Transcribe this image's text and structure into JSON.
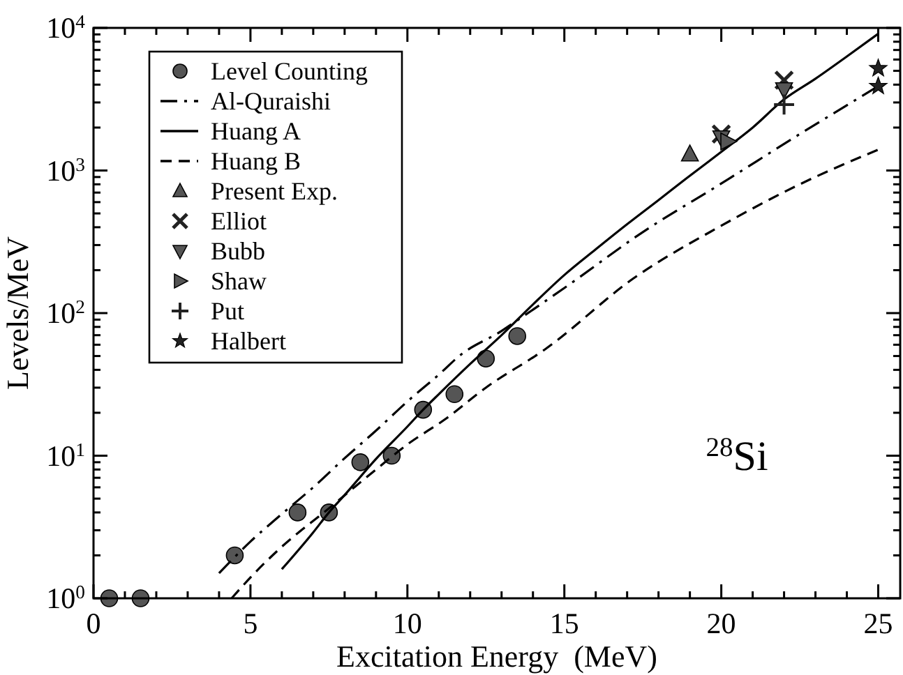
{
  "chart_data": {
    "type": "scatter",
    "xlabel": "Excitation Energy  (MeV)",
    "ylabel": "Levels/MeV",
    "log": "y",
    "xlim": [
      0,
      25.7
    ],
    "ylim": [
      1,
      10000
    ],
    "xticks": [
      0,
      {
        "value": 1,
        "label": null
      },
      {
        "value": 2,
        "label": null
      },
      {
        "value": 3,
        "label": null
      },
      {
        "value": 4,
        "label": null
      },
      5,
      {
        "value": 6,
        "label": null
      },
      {
        "value": 7,
        "label": null
      },
      {
        "value": 8,
        "label": null
      },
      {
        "value": 9,
        "label": null
      },
      10,
      {
        "value": 11,
        "label": null
      },
      {
        "value": 12,
        "label": null
      },
      {
        "value": 13,
        "label": null
      },
      {
        "value": 14,
        "label": null
      },
      15,
      {
        "value": 16,
        "label": null
      },
      {
        "value": 17,
        "label": null
      },
      {
        "value": 18,
        "label": null
      },
      {
        "value": 19,
        "label": null
      },
      20,
      {
        "value": 21,
        "label": null
      },
      {
        "value": 22,
        "label": null
      },
      {
        "value": 23,
        "label": null
      },
      {
        "value": 24,
        "label": null
      },
      25
    ],
    "yticks": [
      {
        "value": 1,
        "label": "10$^{0}$"
      },
      {
        "value": 2,
        "label": null
      },
      {
        "value": 3,
        "label": null
      },
      {
        "value": 4,
        "label": null
      },
      {
        "value": 5,
        "label": null
      },
      {
        "value": 6,
        "label": null
      },
      {
        "value": 7,
        "label": null
      },
      {
        "value": 8,
        "label": null
      },
      {
        "value": 9,
        "label": null
      },
      {
        "value": 10,
        "label": "10$^{1}$"
      },
      {
        "value": 20,
        "label": null
      },
      {
        "value": 30,
        "label": null
      },
      {
        "value": 40,
        "label": null
      },
      {
        "value": 50,
        "label": null
      },
      {
        "value": 60,
        "label": null
      },
      {
        "value": 70,
        "label": null
      },
      {
        "value": 80,
        "label": null
      },
      {
        "value": 90,
        "label": null
      },
      {
        "value": 100,
        "label": "10$^{2}$"
      },
      {
        "value": 200,
        "label": null
      },
      {
        "value": 300,
        "label": null
      },
      {
        "value": 400,
        "label": null
      },
      {
        "value": 500,
        "label": null
      },
      {
        "value": 600,
        "label": null
      },
      {
        "value": 700,
        "label": null
      },
      {
        "value": 800,
        "label": null
      },
      {
        "value": 900,
        "label": null
      },
      {
        "value": 1000,
        "label": "10$^{3}$"
      },
      {
        "value": 2000,
        "label": null
      },
      {
        "value": 3000,
        "label": null
      },
      {
        "value": 4000,
        "label": null
      },
      {
        "value": 5000,
        "label": null
      },
      {
        "value": 6000,
        "label": null
      },
      {
        "value": 7000,
        "label": null
      },
      {
        "value": 8000,
        "label": null
      },
      {
        "value": 9000,
        "label": null
      },
      {
        "value": 10000,
        "label": "10$^{4}$"
      }
    ],
    "grid": false,
    "legend": "top left",
    "annotations": [
      "$^{28}$Si"
    ],
    "series": [
      {
        "name": "Level Counting",
        "marker": "circle",
        "color": "#555555",
        "x": [
          0.5,
          1.5,
          4.5,
          6.5,
          7.5,
          8.5,
          9.5,
          10.5,
          11.5,
          12.5,
          13.5
        ],
        "values": [
          1,
          1,
          2,
          4,
          4,
          9,
          10,
          21,
          27,
          48,
          69
        ]
      },
      {
        "name": "Al-Quraishi",
        "type": "line",
        "line_style": "dashdot",
        "marker": "none",
        "color": "#000000",
        "x": [
          4,
          5,
          6,
          7,
          8,
          9,
          10,
          11,
          11.7,
          13,
          13.5,
          15,
          17.5,
          20,
          22.5,
          25
        ],
        "values": [
          1.5,
          2.5,
          3.9,
          6,
          9.6,
          15,
          24,
          37,
          51,
          75,
          89,
          150,
          370,
          810,
          1800,
          3900
        ]
      },
      {
        "name": "Huang A",
        "type": "line",
        "line_style": "solid",
        "marker": "none",
        "color": "#000000",
        "x": [
          6,
          7,
          7.5,
          8,
          9,
          10,
          10.5,
          11,
          12,
          13,
          14,
          15,
          16,
          17,
          18,
          19,
          20,
          21,
          22,
          23,
          24,
          25
        ],
        "values": [
          1.6,
          2.9,
          4,
          5.3,
          9.5,
          16,
          21,
          27,
          44,
          70,
          115,
          185,
          280,
          420,
          620,
          920,
          1350,
          2000,
          3150,
          4400,
          6300,
          9100
        ]
      },
      {
        "name": "Huang B",
        "type": "line",
        "line_style": "dashed",
        "marker": "none",
        "color": "#000000",
        "x": [
          4.4,
          5,
          6,
          7.4,
          9,
          10,
          11.2,
          12.5,
          14.4,
          17.2,
          20,
          22.5,
          25
        ],
        "values": [
          1,
          1.4,
          2.3,
          4.1,
          8,
          12,
          18,
          30,
          56,
          175,
          410,
          800,
          1400
        ]
      },
      {
        "name": "Present Exp.",
        "marker": "triangle",
        "color": "#555555",
        "x": [
          19
        ],
        "values": [
          1300
        ]
      },
      {
        "name": "Elliot",
        "marker": "x",
        "color": "#222222",
        "x": [
          20,
          22
        ],
        "values": [
          1800,
          4300
        ]
      },
      {
        "name": "Bubb",
        "marker": "triangle-down",
        "color": "#555555",
        "x": [
          20,
          22
        ],
        "values": [
          1700,
          3700
        ]
      },
      {
        "name": "Shaw",
        "marker": "triangle-right",
        "color": "#555555",
        "x": [
          20.2
        ],
        "values": [
          1600
        ]
      },
      {
        "name": "Put",
        "marker": "cross",
        "color": "#222222",
        "x": [
          22
        ],
        "values": [
          2900
        ]
      },
      {
        "name": "Halbert",
        "marker": "star",
        "color": "#222222",
        "x": [
          25,
          25
        ],
        "values": [
          5200,
          3900
        ]
      }
    ]
  }
}
